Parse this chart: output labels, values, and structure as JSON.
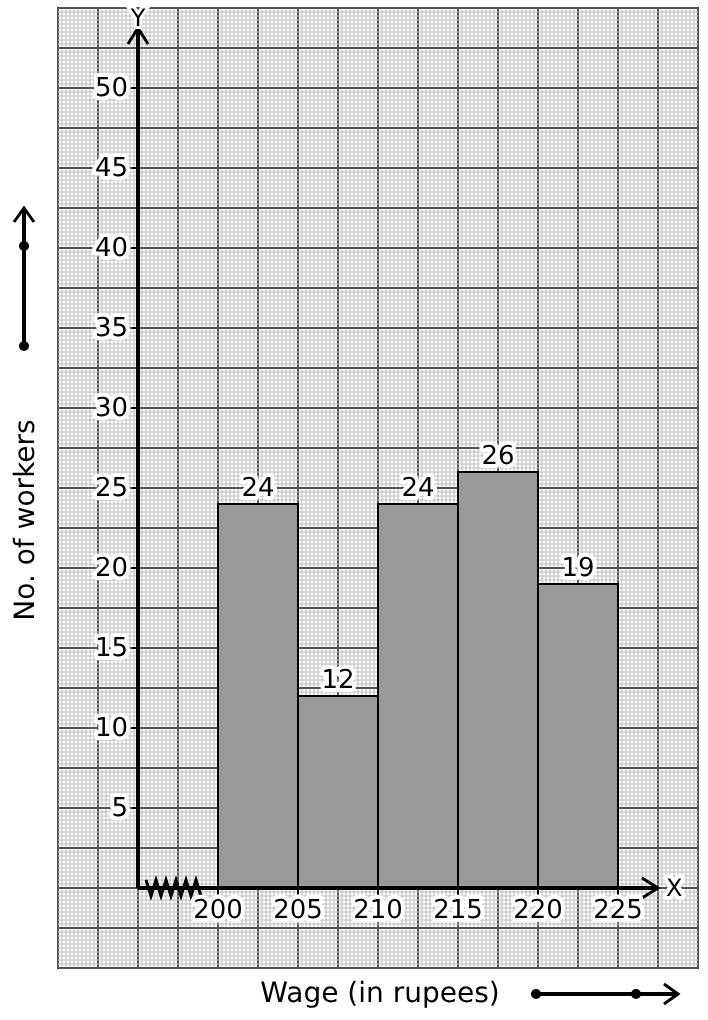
{
  "chart_data": {
    "type": "histogram",
    "xlabel": "Wage (in rupees)",
    "ylabel": "No. of workers",
    "bins": [
      200,
      205,
      210,
      215,
      220,
      225
    ],
    "values": [
      24,
      12,
      24,
      26,
      19
    ],
    "color": "#999999",
    "xlim": [
      190,
      230
    ],
    "ylim": [
      -5,
      55
    ],
    "xticks": [
      200,
      205,
      210,
      215,
      220,
      225
    ],
    "yticks": [
      5,
      10,
      15,
      20,
      25,
      30,
      35,
      40,
      45,
      50
    ],
    "grid": true,
    "data_labels": true,
    "annotations": [
      "Y",
      "X"
    ]
  }
}
